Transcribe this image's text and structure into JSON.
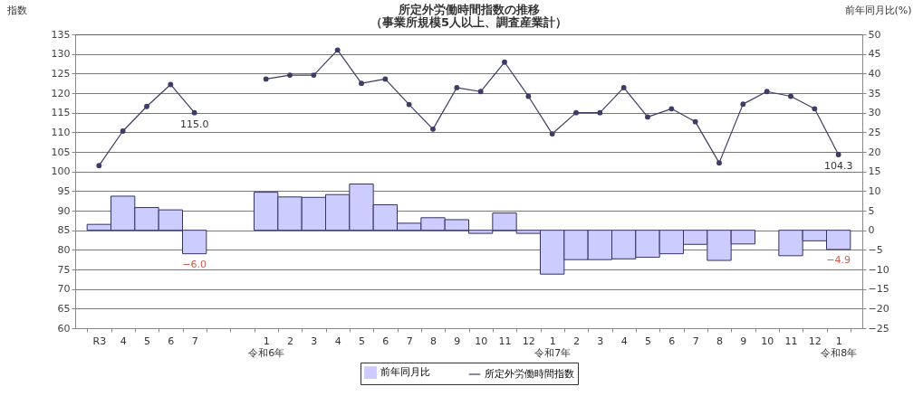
{
  "chart_data": {
    "type": "bar",
    "title": "所定外労働時間指数の推移",
    "subtitle": "（事業所規模5人以上、調査産業計）",
    "ylabel": "指数",
    "y2label": "前年同月比(%)",
    "categories": [
      "R3",
      "4",
      "5",
      "6",
      "7",
      null,
      null,
      "1\n令和6年",
      "2",
      "3",
      "4",
      "5",
      "6",
      "7",
      "8",
      "9",
      "10",
      "11",
      "12",
      "1\n令和7年",
      "2",
      "3",
      "4",
      "5",
      "6",
      "7",
      "8",
      "9",
      "10",
      "11",
      "12",
      "1\n令和8年"
    ],
    "series": [
      {
        "name": "前年同月比",
        "axis": "y2",
        "color": "#ccccff",
        "values": [
          1.5,
          8.7,
          5.8,
          5.2,
          -6.0,
          null,
          null,
          9.7,
          8.5,
          8.4,
          9.1,
          11.8,
          6.5,
          1.8,
          3.2,
          2.7,
          -0.8,
          4.4,
          -0.8,
          -11.2,
          -7.5,
          -7.5,
          -7.3,
          -6.9,
          -6.0,
          -3.6,
          -7.7,
          -3.5,
          null,
          -6.5,
          -2.7,
          -4.9
        ],
        "value_labels": [
          null,
          null,
          null,
          null,
          "−6.0",
          null,
          null,
          null,
          null,
          null,
          null,
          null,
          null,
          null,
          null,
          null,
          null,
          null,
          null,
          null,
          null,
          null,
          null,
          null,
          null,
          null,
          null,
          null,
          null,
          null,
          null,
          "−4.9"
        ]
      },
      {
        "name": "所定外労働時間指数",
        "type": "line",
        "color": "#3c3c64",
        "marker": "circle",
        "values": [
          101.5,
          110.3,
          116.6,
          122.2,
          115.0,
          null,
          null,
          123.6,
          124.6,
          124.6,
          131.0,
          122.5,
          123.6,
          117.1,
          110.8,
          121.4,
          120.4,
          127.9,
          119.2,
          109.6,
          115.0,
          115.0,
          121.4,
          113.9,
          116.0,
          112.7,
          102.2,
          117.2,
          120.4,
          119.2,
          116.0,
          104.3
        ],
        "value_labels": [
          null,
          null,
          null,
          null,
          "115.0",
          null,
          null,
          null,
          null,
          null,
          null,
          null,
          null,
          null,
          null,
          null,
          null,
          null,
          null,
          null,
          null,
          null,
          null,
          null,
          null,
          null,
          null,
          null,
          null,
          null,
          null,
          "104.3"
        ]
      }
    ],
    "ylim": [
      60,
      135
    ],
    "yticks": [
      60,
      65,
      70,
      75,
      80,
      85,
      90,
      95,
      100,
      105,
      110,
      115,
      120,
      125,
      130,
      135
    ],
    "y2lim": [
      -25,
      50
    ],
    "y2ticks": [
      -25,
      -20,
      -15,
      -10,
      -5,
      0,
      5,
      10,
      15,
      20,
      25,
      30,
      35,
      40,
      45,
      50
    ],
    "grid": "y",
    "legend": "bottom"
  }
}
